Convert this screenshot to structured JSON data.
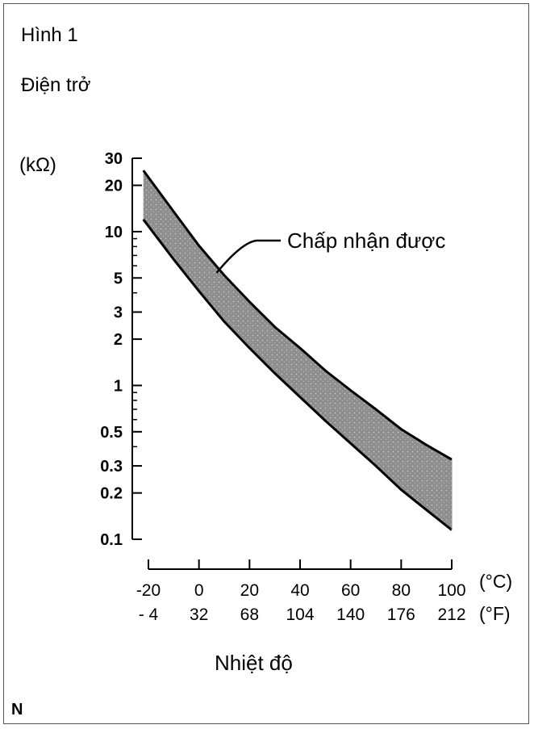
{
  "figure_title": "Hình 1",
  "y_quantity": "Điện trở",
  "footer_code": "N",
  "chart_data": {
    "type": "area",
    "title": "Hình 1",
    "ylabel": "Điện trở",
    "yunit": "(kΩ)",
    "xlabel": "Nhiệt độ",
    "xunit_celsius": "(°C)",
    "xunit_fahrenheit": "(°F)",
    "y_scale": "log",
    "ylim": [
      0.1,
      30
    ],
    "xlim": [
      -20,
      100
    ],
    "y_ticks": [
      {
        "value": 0.1,
        "label": "0.1"
      },
      {
        "value": 0.2,
        "label": "0.2"
      },
      {
        "value": 0.3,
        "label": "0.3"
      },
      {
        "value": 0.5,
        "label": "0.5"
      },
      {
        "value": 1,
        "label": "1"
      },
      {
        "value": 2,
        "label": "2"
      },
      {
        "value": 3,
        "label": "3"
      },
      {
        "value": 5,
        "label": "5"
      },
      {
        "value": 10,
        "label": "10"
      },
      {
        "value": 20,
        "label": "20"
      },
      {
        "value": 30,
        "label": "30"
      }
    ],
    "y_minor_ticks": [
      0.4,
      0.6,
      0.7,
      0.8,
      0.9,
      4,
      6,
      7,
      8,
      9
    ],
    "x_ticks": [
      {
        "celsius": -20,
        "label_c": "-20",
        "label_f": "- 4"
      },
      {
        "celsius": 0,
        "label_c": "0",
        "label_f": "32"
      },
      {
        "celsius": 20,
        "label_c": "20",
        "label_f": "68"
      },
      {
        "celsius": 40,
        "label_c": "40",
        "label_f": "104"
      },
      {
        "celsius": 60,
        "label_c": "60",
        "label_f": "140"
      },
      {
        "celsius": 80,
        "label_c": "80",
        "label_f": "176"
      },
      {
        "celsius": 100,
        "label_c": "100",
        "label_f": "212"
      }
    ],
    "band": {
      "annotation": "Chấp nhận được",
      "upper": {
        "x": [
          -22,
          -10,
          0,
          10,
          20,
          30,
          40,
          50,
          60,
          70,
          80,
          90,
          100
        ],
        "y": [
          25,
          13.5,
          8.1,
          5.2,
          3.5,
          2.4,
          1.75,
          1.25,
          0.93,
          0.7,
          0.52,
          0.41,
          0.33
        ]
      },
      "lower": {
        "x": [
          -22,
          -10,
          0,
          10,
          20,
          30,
          40,
          50,
          60,
          70,
          80,
          90,
          100
        ],
        "y": [
          12,
          6.6,
          4.1,
          2.6,
          1.75,
          1.2,
          0.84,
          0.59,
          0.42,
          0.3,
          0.21,
          0.155,
          0.115
        ]
      }
    },
    "grid": false,
    "legend": "none"
  }
}
